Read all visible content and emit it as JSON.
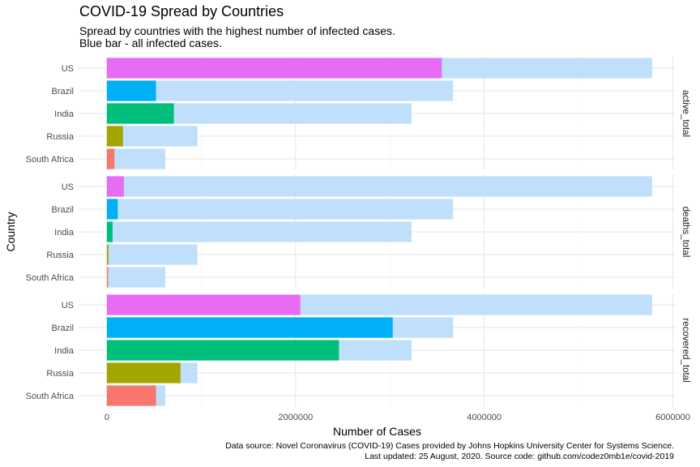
{
  "chart_data": {
    "type": "bar",
    "orientation": "horizontal",
    "title": "COVID-19 Spread by Countries",
    "subtitle_lines": [
      "Spread by countries with the highest number of infected cases.",
      "Blue bar - all infected cases."
    ],
    "xlabel": "Number of Cases",
    "ylabel": "Country",
    "caption_lines": [
      "Data source: Novel Coronavirus (COVID-19) Cases provided by Johns Hopkins University Center for Systems Science.",
      "Last updated: 25 August, 2020. Source code: github.com/codez0mb1e/covid-2019"
    ],
    "xlim": [
      -300000,
      6030000
    ],
    "x_ticks": [
      0,
      2000000,
      4000000,
      6000000
    ],
    "x_tick_labels": [
      "0",
      "2000000",
      "4000000",
      "6000000"
    ],
    "grid": true,
    "categories": [
      "US",
      "Brazil",
      "India",
      "Russia",
      "South Africa"
    ],
    "total_series": {
      "values": [
        5780000,
        3670000,
        3230000,
        960000,
        620000
      ],
      "color": "#bfdffb"
    },
    "colors": {
      "US": "#e76bf3",
      "Brazil": "#00b0f6",
      "India": "#00bf7d",
      "Russia": "#a3a500",
      "South Africa": "#f8766d"
    },
    "facets": [
      {
        "label": "active_total",
        "values": [
          3550000,
          520000,
          710000,
          170000,
          80000
        ]
      },
      {
        "label": "deaths_total",
        "values": [
          180000,
          115000,
          60000,
          16000,
          13000
        ]
      },
      {
        "label": "recovered_total",
        "values": [
          2050000,
          3030000,
          2460000,
          780000,
          520000
        ]
      }
    ]
  }
}
